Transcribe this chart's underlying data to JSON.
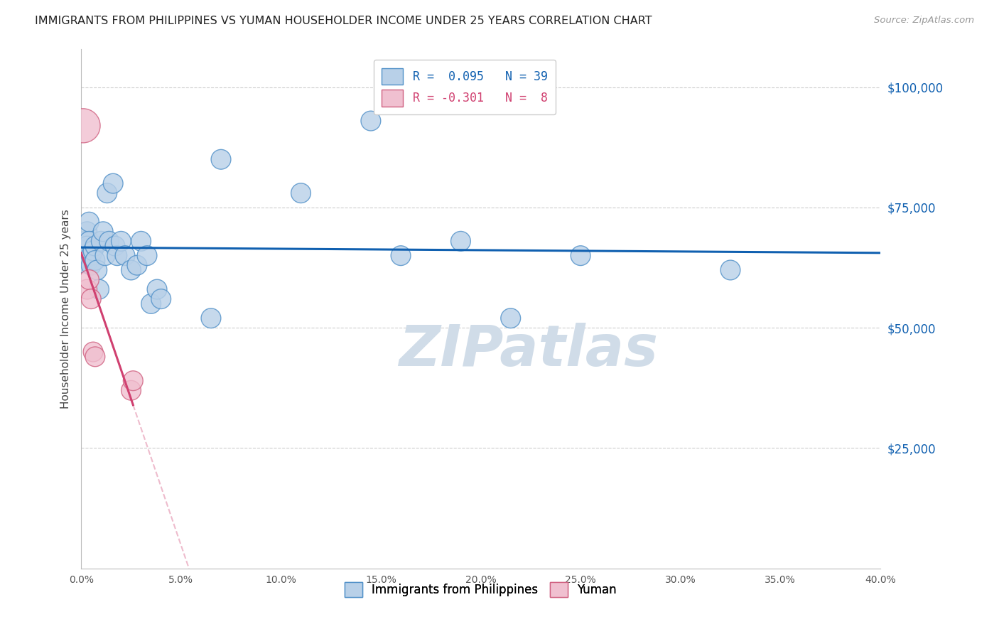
{
  "title": "IMMIGRANTS FROM PHILIPPINES VS YUMAN HOUSEHOLDER INCOME UNDER 25 YEARS CORRELATION CHART",
  "source": "Source: ZipAtlas.com",
  "ylabel": "Householder Income Under 25 years",
  "y_ticks": [
    0,
    25000,
    50000,
    75000,
    100000
  ],
  "y_tick_labels": [
    "",
    "$25,000",
    "$50,000",
    "$75,000",
    "$100,000"
  ],
  "x_min": 0.0,
  "x_max": 0.4,
  "y_min": 0,
  "y_max": 108000,
  "blue_r": 0.095,
  "blue_n": 39,
  "pink_r": -0.301,
  "pink_n": 8,
  "blue_scatter_x": [
    0.001,
    0.002,
    0.003,
    0.003,
    0.004,
    0.004,
    0.005,
    0.005,
    0.006,
    0.007,
    0.007,
    0.008,
    0.009,
    0.01,
    0.011,
    0.012,
    0.013,
    0.014,
    0.016,
    0.017,
    0.018,
    0.02,
    0.022,
    0.025,
    0.028,
    0.03,
    0.033,
    0.035,
    0.038,
    0.04,
    0.065,
    0.07,
    0.11,
    0.145,
    0.16,
    0.19,
    0.215,
    0.25,
    0.325
  ],
  "blue_scatter_y": [
    65000,
    68000,
    70000,
    67000,
    72000,
    68000,
    65000,
    63000,
    66000,
    67000,
    64000,
    62000,
    58000,
    68000,
    70000,
    65000,
    78000,
    68000,
    80000,
    67000,
    65000,
    68000,
    65000,
    62000,
    63000,
    68000,
    65000,
    55000,
    58000,
    56000,
    52000,
    85000,
    78000,
    93000,
    65000,
    68000,
    52000,
    65000,
    62000
  ],
  "pink_scatter_x": [
    0.001,
    0.003,
    0.004,
    0.005,
    0.006,
    0.007,
    0.025,
    0.026
  ],
  "pink_scatter_y": [
    92000,
    58000,
    60000,
    56000,
    45000,
    44000,
    37000,
    39000
  ],
  "blue_color": "#b8d0e8",
  "blue_edge_color": "#5090c8",
  "pink_color": "#f0c0d0",
  "pink_edge_color": "#d06080",
  "blue_line_color": "#1060b0",
  "pink_line_color": "#d04070",
  "watermark": "ZIPatlas",
  "watermark_color": "#d0dce8",
  "background_color": "#ffffff",
  "grid_color": "#cccccc",
  "dot_size": 400,
  "large_blue_size": 1200
}
